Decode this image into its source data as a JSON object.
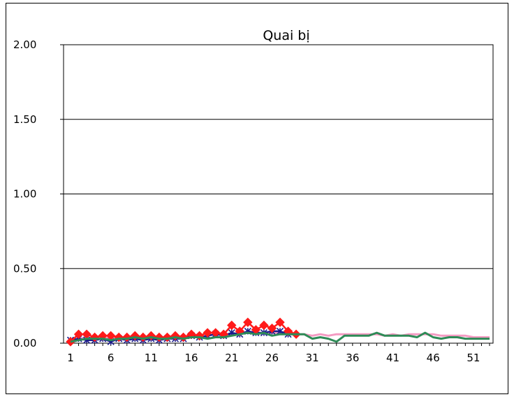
{
  "chart_data": {
    "type": "line",
    "title": "Quai bị",
    "xlabel": "",
    "ylabel": "",
    "ylim": [
      0,
      2
    ],
    "yticks": [
      "0.00",
      "0.50",
      "1.00",
      "1.50",
      "2.00"
    ],
    "xlim": [
      1,
      53
    ],
    "xticks": [
      "1",
      "6",
      "11",
      "16",
      "21",
      "26",
      "31",
      "36",
      "41",
      "46",
      "51"
    ],
    "grid": "horizontal",
    "legend": "none",
    "series": [
      {
        "color": "#f49ac2",
        "marker": "none",
        "x": [
          1,
          2,
          3,
          4,
          5,
          6,
          7,
          8,
          9,
          10,
          11,
          12,
          13,
          14,
          15,
          16,
          17,
          18,
          19,
          20,
          21,
          22,
          23,
          24,
          25,
          26,
          27,
          28,
          29,
          30,
          31,
          32,
          33,
          34,
          35,
          36,
          37,
          38,
          39,
          40,
          41,
          42,
          43,
          44,
          45,
          46,
          47,
          48,
          49,
          50,
          51,
          52,
          53
        ],
        "values": [
          0.02,
          0.03,
          0.04,
          0.03,
          0.04,
          0.03,
          0.04,
          0.04,
          0.04,
          0.04,
          0.04,
          0.04,
          0.04,
          0.04,
          0.04,
          0.05,
          0.05,
          0.05,
          0.06,
          0.06,
          0.06,
          0.07,
          0.07,
          0.07,
          0.07,
          0.07,
          0.07,
          0.06,
          0.06,
          0.06,
          0.05,
          0.06,
          0.05,
          0.06,
          0.06,
          0.06,
          0.06,
          0.06,
          0.06,
          0.05,
          0.06,
          0.05,
          0.06,
          0.06,
          0.06,
          0.06,
          0.05,
          0.05,
          0.05,
          0.05,
          0.04,
          0.04,
          0.04
        ]
      },
      {
        "color": "#1a1a8c",
        "marker": "star",
        "x": [
          1,
          2,
          3,
          4,
          5,
          6,
          7,
          8,
          9,
          10,
          11,
          12,
          13,
          14,
          15,
          16,
          17,
          18,
          19,
          20,
          21,
          22,
          23,
          24,
          25,
          26,
          27,
          28
        ],
        "values": [
          0.02,
          0.03,
          0.02,
          0.02,
          0.03,
          0.01,
          0.03,
          0.02,
          0.03,
          0.02,
          0.03,
          0.02,
          0.03,
          0.03,
          0.03,
          0.05,
          0.04,
          0.05,
          0.06,
          0.05,
          0.07,
          0.06,
          0.08,
          0.07,
          0.07,
          0.08,
          0.08,
          0.06
        ]
      },
      {
        "color": "#ff1a1a",
        "marker": "diamond",
        "x": [
          1,
          2,
          3,
          4,
          5,
          6,
          7,
          8,
          9,
          10,
          11,
          12,
          13,
          14,
          15,
          16,
          17,
          18,
          19,
          20,
          21,
          22,
          23,
          24,
          25,
          26,
          27,
          28,
          29
        ],
        "values": [
          0.01,
          0.06,
          0.06,
          0.04,
          0.05,
          0.05,
          0.04,
          0.04,
          0.05,
          0.04,
          0.05,
          0.04,
          0.04,
          0.05,
          0.04,
          0.06,
          0.05,
          0.07,
          0.07,
          0.06,
          0.12,
          0.08,
          0.14,
          0.09,
          0.12,
          0.1,
          0.14,
          0.08,
          0.06
        ]
      },
      {
        "color": "#2e8b57",
        "marker": "none",
        "x": [
          1,
          2,
          3,
          4,
          5,
          6,
          7,
          8,
          9,
          10,
          11,
          12,
          13,
          14,
          15,
          16,
          17,
          18,
          19,
          20,
          21,
          22,
          23,
          24,
          25,
          26,
          27,
          28,
          29,
          30,
          31,
          32,
          33,
          34,
          35,
          36,
          37,
          38,
          39,
          40,
          41,
          42,
          43,
          44,
          45,
          46,
          47,
          48,
          49,
          50,
          51,
          52,
          53
        ],
        "values": [
          0.01,
          0.02,
          0.03,
          0.03,
          0.03,
          0.02,
          0.03,
          0.03,
          0.04,
          0.03,
          0.04,
          0.03,
          0.03,
          0.04,
          0.03,
          0.04,
          0.04,
          0.03,
          0.04,
          0.04,
          0.05,
          0.06,
          0.07,
          0.06,
          0.07,
          0.05,
          0.06,
          0.06,
          0.06,
          0.06,
          0.03,
          0.04,
          0.03,
          0.01,
          0.05,
          0.05,
          0.05,
          0.05,
          0.07,
          0.05,
          0.05,
          0.05,
          0.05,
          0.04,
          0.07,
          0.04,
          0.03,
          0.04,
          0.04,
          0.03,
          0.03,
          0.03,
          0.03
        ]
      }
    ]
  }
}
